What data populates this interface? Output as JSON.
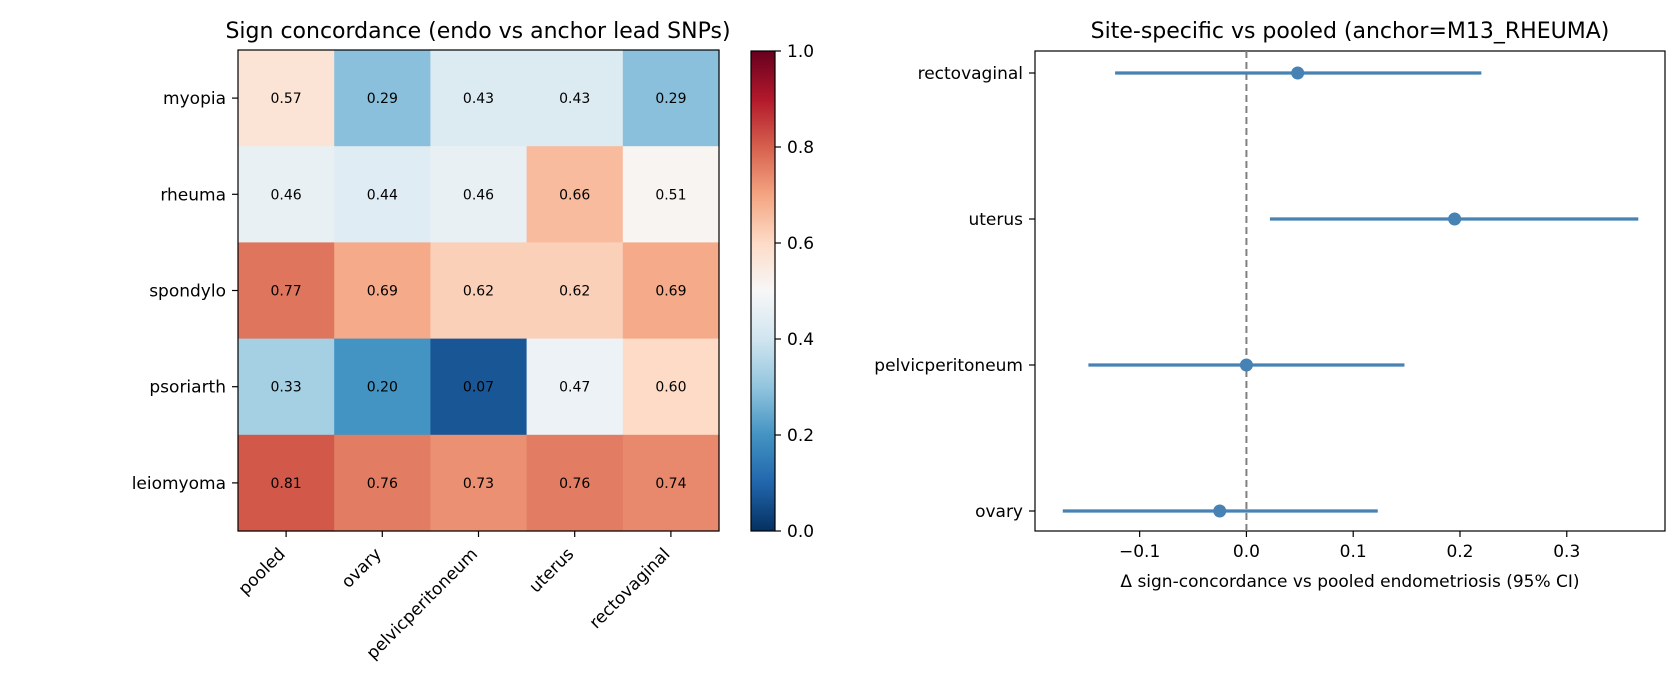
{
  "chart_data": [
    {
      "type": "heatmap",
      "title": "Sign concordance (endo vs anchor lead SNPs)",
      "rows": [
        "myopia",
        "rheuma",
        "spondylo",
        "psoriarth",
        "leiomyoma"
      ],
      "columns": [
        "pooled",
        "ovary",
        "pelvicperitoneum",
        "uterus",
        "rectovaginal"
      ],
      "values": [
        [
          0.57,
          0.29,
          0.43,
          0.43,
          0.29
        ],
        [
          0.46,
          0.44,
          0.46,
          0.66,
          0.51
        ],
        [
          0.77,
          0.69,
          0.62,
          0.62,
          0.69
        ],
        [
          0.33,
          0.2,
          0.07,
          0.47,
          0.6
        ],
        [
          0.81,
          0.76,
          0.73,
          0.76,
          0.74
        ]
      ],
      "value_labels": [
        [
          "0.57",
          "0.29",
          "0.43",
          "0.43",
          "0.29"
        ],
        [
          "0.46",
          "0.44",
          "0.46",
          "0.66",
          "0.51"
        ],
        [
          "0.77",
          "0.69",
          "0.62",
          "0.62",
          "0.69"
        ],
        [
          "0.33",
          "0.20",
          "0.07",
          "0.47",
          "0.60"
        ],
        [
          "0.81",
          "0.76",
          "0.73",
          "0.76",
          "0.74"
        ]
      ],
      "colormap": "RdBu_r",
      "colorbar": {
        "range": [
          0,
          1
        ],
        "ticks": [
          0.0,
          0.2,
          0.4,
          0.6,
          0.8,
          1.0
        ],
        "tick_labels": [
          "0.0",
          "0.2",
          "0.4",
          "0.6",
          "0.8",
          "1.0"
        ]
      }
    },
    {
      "type": "scatter",
      "subtype": "forest",
      "title": "Site-specific vs pooled (anchor=M13_RHEUMA)",
      "xlabel": "Δ sign-concordance vs pooled endometriosis (95% CI)",
      "ylabel": "",
      "categories": [
        "rectovaginal",
        "uterus",
        "pelvicperitoneum",
        "ovary"
      ],
      "estimates": [
        0.048,
        0.195,
        0.0,
        -0.025
      ],
      "ci_low": [
        -0.123,
        0.022,
        -0.148,
        -0.172
      ],
      "ci_high": [
        0.22,
        0.367,
        0.148,
        0.123
      ],
      "xlim": [
        -0.198,
        0.392
      ],
      "xticks": [
        -0.1,
        0.0,
        0.1,
        0.2,
        0.3
      ],
      "xtick_labels": [
        "−0.1",
        "0.0",
        "0.1",
        "0.2",
        "0.3"
      ],
      "reference_line": 0,
      "series_color": "#4682b4",
      "grid": false
    }
  ]
}
